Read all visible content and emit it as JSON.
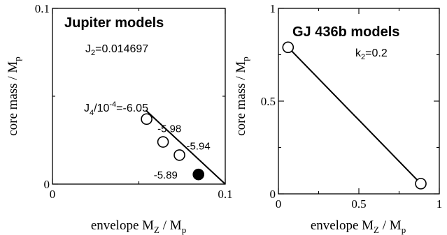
{
  "chart_data": [
    {
      "type": "scatter",
      "title": "Jupiter  models",
      "subtitle_base": "J",
      "subtitle_sub": "2",
      "subtitle_rest": "=0.014697",
      "xlabel_base": "envelope M",
      "xlabel_sub1": "Z",
      "xlabel_mid": " / M",
      "xlabel_sub2": "p",
      "ylabel_base": "core mass / M",
      "ylabel_sub": "p",
      "xlim": [
        0,
        0.1
      ],
      "ylim": [
        0,
        0.1
      ],
      "x_ticks": [
        {
          "value": 0,
          "label": "0"
        },
        {
          "value": 0.1,
          "label": "0.1"
        }
      ],
      "y_ticks": [
        {
          "value": 0,
          "label": "0"
        },
        {
          "value": 0.1,
          "label": "0.1"
        }
      ],
      "x_minor": [
        0.05
      ],
      "y_minor": [
        0.05
      ],
      "grid": false,
      "line": {
        "x1": 0.054,
        "y1": 0.042,
        "x2": 0.1,
        "y2": 0
      },
      "points": [
        {
          "x": 0.0545,
          "y": 0.037,
          "label": "",
          "filled": false
        },
        {
          "x": 0.064,
          "y": 0.024,
          "label": "-5.98",
          "filled": false
        },
        {
          "x": 0.0735,
          "y": 0.0165,
          "label": "-5.94",
          "filled": false
        },
        {
          "x": 0.0845,
          "y": 0.0055,
          "label": "-5.89",
          "filled": true
        }
      ],
      "first_label_base": "J",
      "first_label_sub": "4",
      "first_label_mid": "/10",
      "first_label_sup": "-4",
      "first_label_rest": "=-6.05"
    },
    {
      "type": "line",
      "title": "GJ 436b  models",
      "subtitle_base": "k",
      "subtitle_sub": "2",
      "subtitle_rest": "=0.2",
      "xlabel_base": "envelope M",
      "xlabel_sub1": "Z",
      "xlabel_mid": " / M",
      "xlabel_sub2": "p",
      "ylabel_base": "core mass / M",
      "ylabel_sub": "p",
      "xlim": [
        0,
        1
      ],
      "ylim": [
        0,
        1
      ],
      "x_ticks": [
        {
          "value": 0,
          "label": "0"
        },
        {
          "value": 0.5,
          "label": "0.5"
        },
        {
          "value": 1,
          "label": "1"
        }
      ],
      "y_ticks": [
        {
          "value": 0,
          "label": "0"
        },
        {
          "value": 0.5,
          "label": "0.5"
        },
        {
          "value": 1,
          "label": "1"
        }
      ],
      "x_minor": [
        0.25,
        0.75
      ],
      "y_minor": [
        0.25,
        0.75
      ],
      "grid": false,
      "points": [
        {
          "x": 0.06,
          "y": 0.79,
          "label": "",
          "filled": false
        },
        {
          "x": 0.885,
          "y": 0.055,
          "label": "",
          "filled": false
        }
      ]
    }
  ]
}
